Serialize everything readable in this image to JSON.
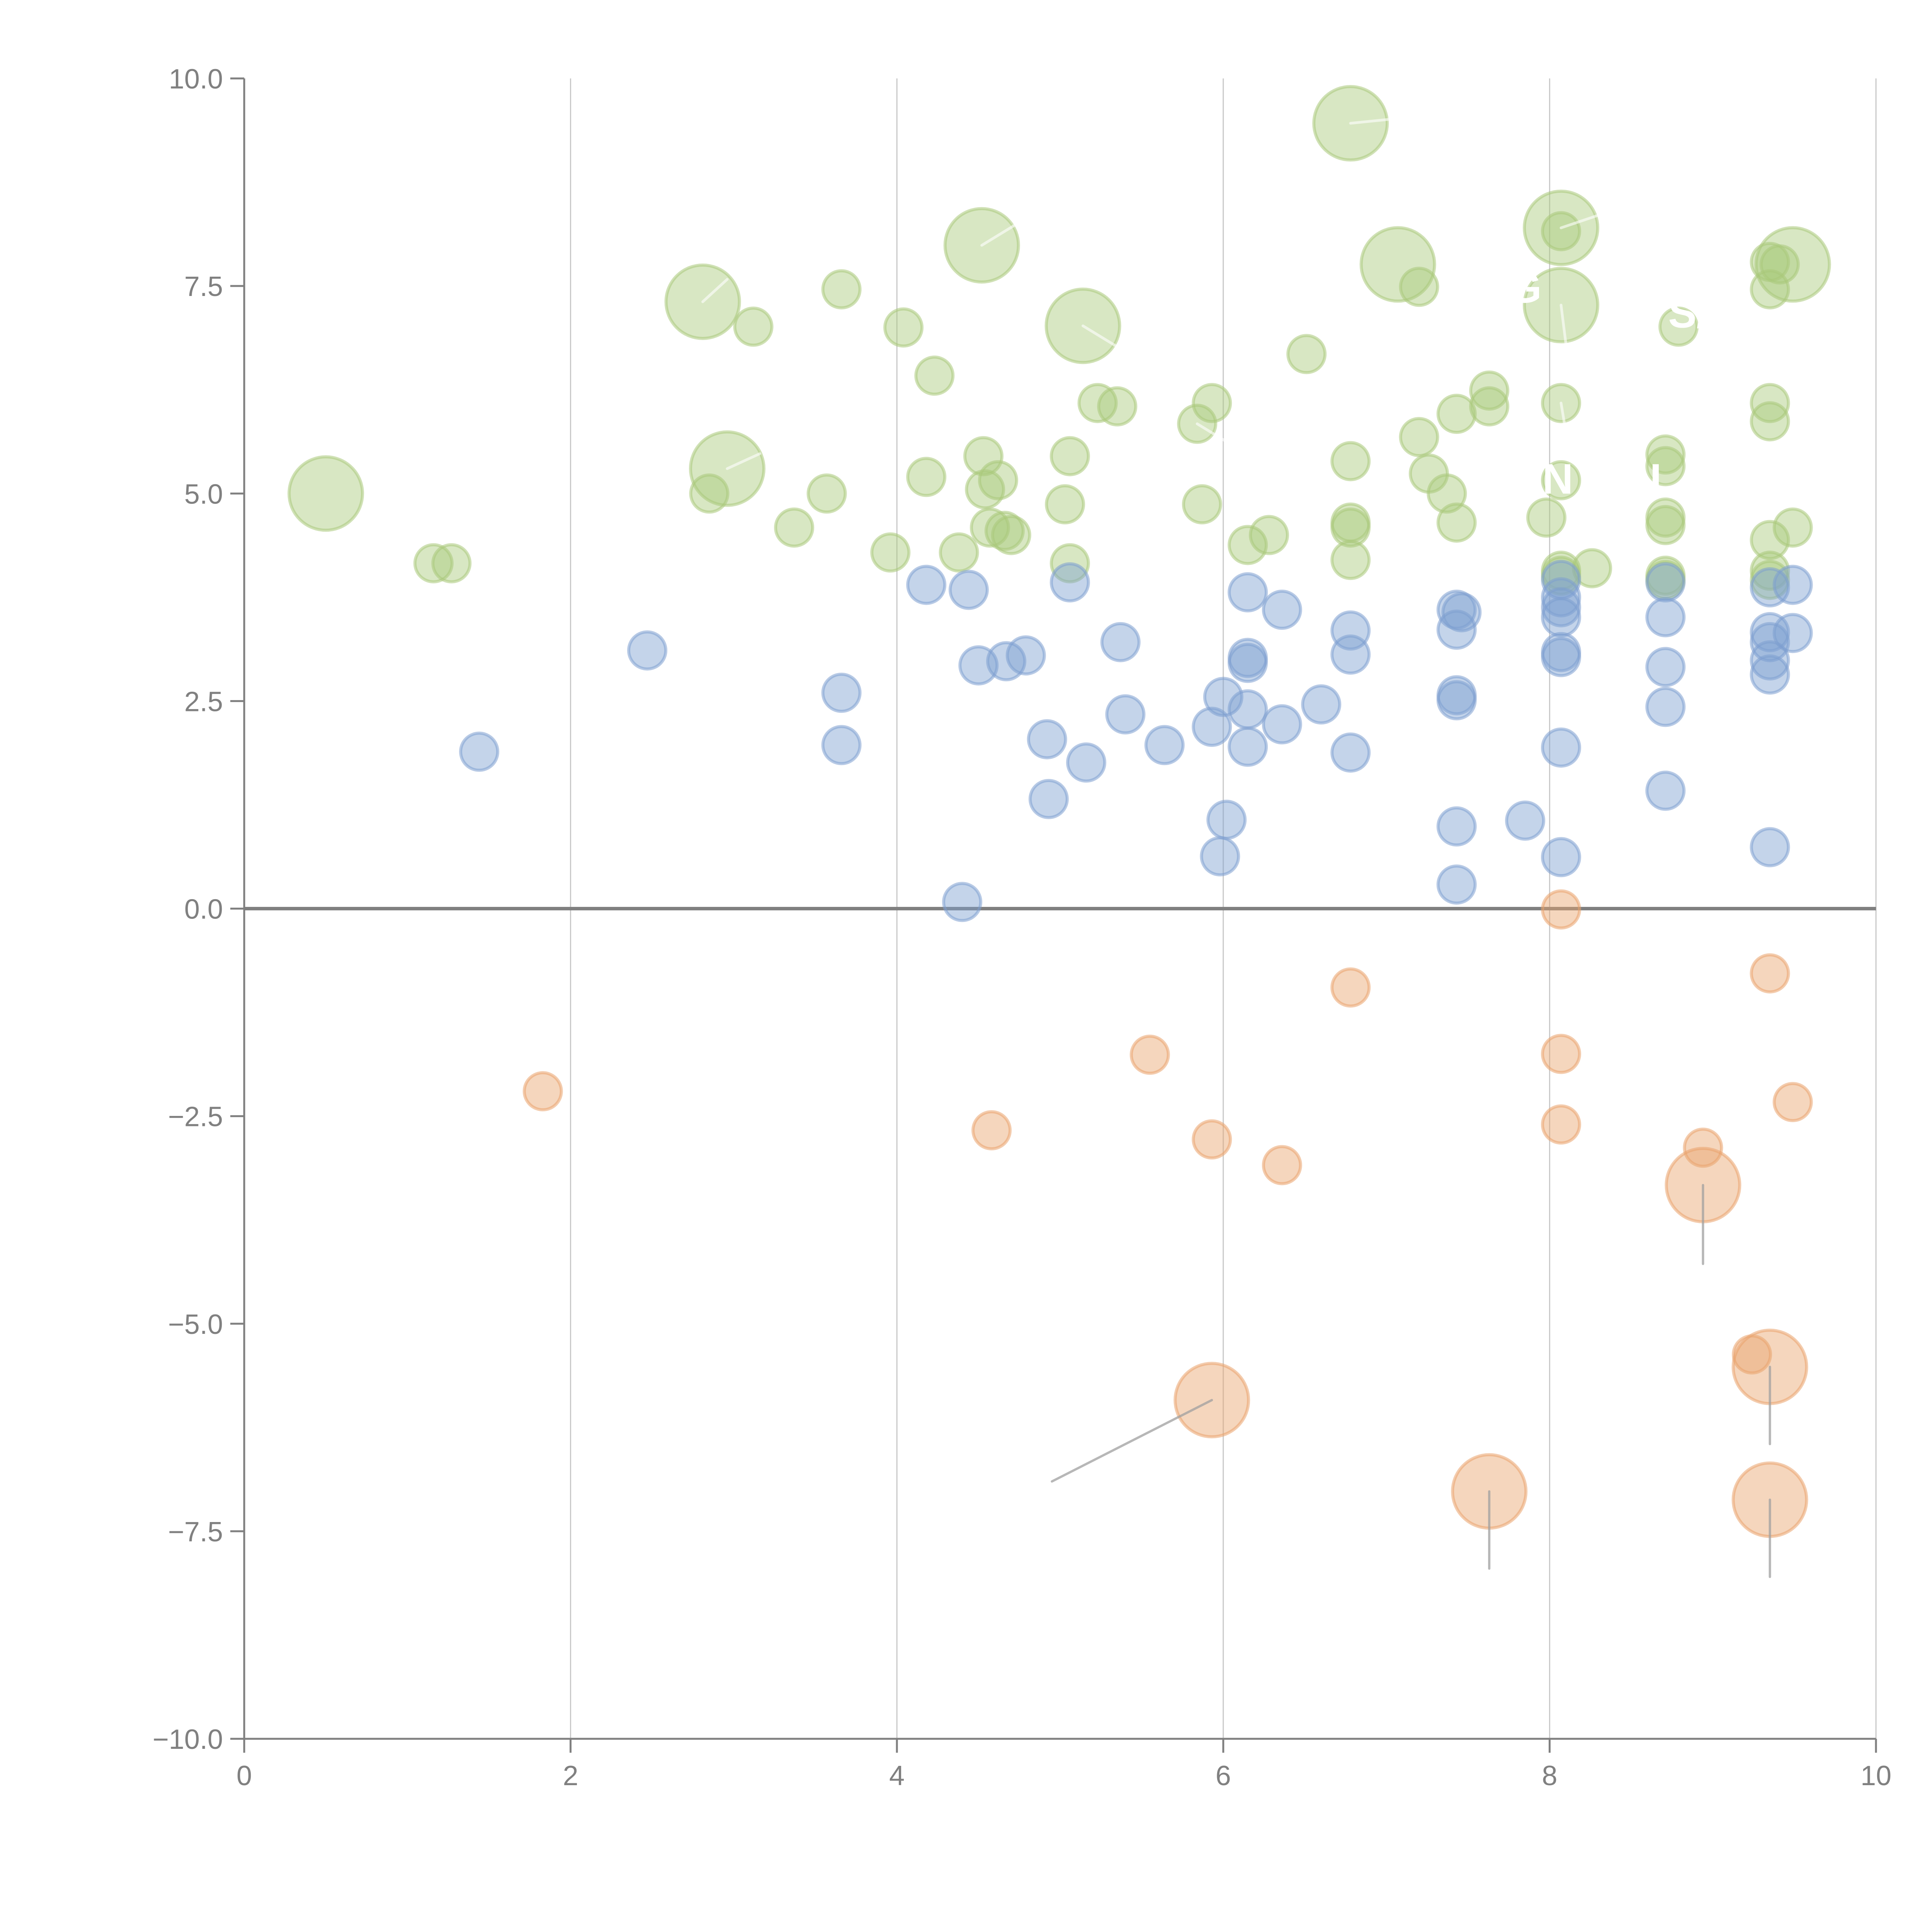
{
  "chart_data": {
    "type": "scatter",
    "title": "",
    "xlabel": "",
    "ylabel": "",
    "xlim": [
      0,
      10
    ],
    "ylim": [
      -10,
      10
    ],
    "x_ticks": [
      "0",
      "2",
      "4",
      "6",
      "8",
      "10"
    ],
    "y_ticks": [
      "10.0",
      "7.5",
      "5.0",
      "2.5",
      "0.0",
      "−2.5",
      "−5.0",
      "−7.5",
      "−10.0"
    ],
    "x_tick_values": [
      0,
      2,
      4,
      6,
      8,
      10
    ],
    "y_tick_values": [
      10,
      7.5,
      5,
      2.5,
      0,
      -2.5,
      -5,
      -7.5,
      -10
    ],
    "grid": "vertical",
    "legend": "none",
    "series": [
      {
        "name": "green",
        "color": "#a9c97a",
        "points": [
          {
            "x": 0.5,
            "y": 5.0,
            "s": 3
          },
          {
            "x": 1.16,
            "y": 4.16,
            "s": 1
          },
          {
            "x": 1.27,
            "y": 4.16,
            "s": 1
          },
          {
            "x": 2.81,
            "y": 7.31,
            "s": 3
          },
          {
            "x": 2.96,
            "y": 5.3,
            "s": 3
          },
          {
            "x": 2.85,
            "y": 5.0,
            "s": 1
          },
          {
            "x": 3.12,
            "y": 7.01,
            "s": 1
          },
          {
            "x": 3.37,
            "y": 4.59,
            "s": 1
          },
          {
            "x": 3.57,
            "y": 5.0,
            "s": 1
          },
          {
            "x": 3.66,
            "y": 7.46,
            "s": 1
          },
          {
            "x": 3.96,
            "y": 4.29,
            "s": 1
          },
          {
            "x": 4.04,
            "y": 7.0,
            "s": 1
          },
          {
            "x": 4.18,
            "y": 5.2,
            "s": 1
          },
          {
            "x": 4.23,
            "y": 6.42,
            "s": 1
          },
          {
            "x": 4.38,
            "y": 4.29,
            "s": 1
          },
          {
            "x": 4.52,
            "y": 7.99,
            "s": 3
          },
          {
            "x": 4.53,
            "y": 5.45,
            "s": 1
          },
          {
            "x": 4.54,
            "y": 5.05,
            "s": 1
          },
          {
            "x": 4.62,
            "y": 5.16,
            "s": 1
          },
          {
            "x": 4.57,
            "y": 4.59,
            "s": 1
          },
          {
            "x": 4.66,
            "y": 4.55,
            "s": 1
          },
          {
            "x": 4.7,
            "y": 4.5,
            "s": 1
          },
          {
            "x": 5.03,
            "y": 4.87,
            "s": 1
          },
          {
            "x": 5.06,
            "y": 5.45,
            "s": 1
          },
          {
            "x": 5.06,
            "y": 4.16,
            "s": 1
          },
          {
            "x": 5.14,
            "y": 7.02,
            "s": 3
          },
          {
            "x": 5.23,
            "y": 6.09,
            "s": 1
          },
          {
            "x": 5.35,
            "y": 6.05,
            "s": 1
          },
          {
            "x": 5.84,
            "y": 5.84,
            "s": 1
          },
          {
            "x": 5.93,
            "y": 6.09,
            "s": 1
          },
          {
            "x": 5.87,
            "y": 4.87,
            "s": 1
          },
          {
            "x": 6.15,
            "y": 4.38,
            "s": 1
          },
          {
            "x": 6.28,
            "y": 4.5,
            "s": 1
          },
          {
            "x": 6.51,
            "y": 6.68,
            "s": 1
          },
          {
            "x": 6.78,
            "y": 9.46,
            "s": 3
          },
          {
            "x": 6.78,
            "y": 5.39,
            "s": 1
          },
          {
            "x": 6.78,
            "y": 4.65,
            "s": 1
          },
          {
            "x": 6.78,
            "y": 4.59,
            "s": 1
          },
          {
            "x": 6.78,
            "y": 4.2,
            "s": 1
          },
          {
            "x": 7.07,
            "y": 7.76,
            "s": 3
          },
          {
            "x": 7.2,
            "y": 7.49,
            "s": 1
          },
          {
            "x": 7.2,
            "y": 5.68,
            "s": 1
          },
          {
            "x": 7.26,
            "y": 5.24,
            "s": 1
          },
          {
            "x": 7.37,
            "y": 5.0,
            "s": 1
          },
          {
            "x": 7.43,
            "y": 5.96,
            "s": 1
          },
          {
            "x": 7.43,
            "y": 4.65,
            "s": 1
          },
          {
            "x": 7.63,
            "y": 6.24,
            "s": 1
          },
          {
            "x": 7.63,
            "y": 6.05,
            "s": 1
          },
          {
            "x": 8.07,
            "y": 8.2,
            "s": 3
          },
          {
            "x": 8.07,
            "y": 8.16,
            "s": 1
          },
          {
            "x": 8.07,
            "y": 7.27,
            "s": 3
          },
          {
            "x": 8.07,
            "y": 6.09,
            "s": 1
          },
          {
            "x": 8.07,
            "y": 5.16,
            "s": 1
          },
          {
            "x": 7.98,
            "y": 4.71,
            "s": 1
          },
          {
            "x": 8.07,
            "y": 4.07,
            "s": 1
          },
          {
            "x": 8.07,
            "y": 4.01,
            "s": 1
          },
          {
            "x": 8.26,
            "y": 4.1,
            "s": 1
          },
          {
            "x": 8.79,
            "y": 7.01,
            "s": 1
          },
          {
            "x": 8.71,
            "y": 5.47,
            "s": 1
          },
          {
            "x": 8.71,
            "y": 5.33,
            "s": 1
          },
          {
            "x": 8.71,
            "y": 4.71,
            "s": 1
          },
          {
            "x": 8.71,
            "y": 4.62,
            "s": 1
          },
          {
            "x": 8.71,
            "y": 4.01,
            "s": 1
          },
          {
            "x": 8.71,
            "y": 3.96,
            "s": 1
          },
          {
            "x": 9.35,
            "y": 7.79,
            "s": 1
          },
          {
            "x": 9.41,
            "y": 7.76,
            "s": 1
          },
          {
            "x": 9.49,
            "y": 7.76,
            "s": 3
          },
          {
            "x": 9.35,
            "y": 7.46,
            "s": 1
          },
          {
            "x": 9.35,
            "y": 6.09,
            "s": 1
          },
          {
            "x": 9.35,
            "y": 5.87,
            "s": 1
          },
          {
            "x": 9.49,
            "y": 4.59,
            "s": 1
          },
          {
            "x": 9.35,
            "y": 4.44,
            "s": 1
          },
          {
            "x": 9.35,
            "y": 4.07,
            "s": 1
          },
          {
            "x": 9.35,
            "y": 3.96,
            "s": 1
          }
        ]
      },
      {
        "name": "blue",
        "color": "#7d9fd0",
        "points": [
          {
            "x": 1.44,
            "y": 1.89,
            "s": 1
          },
          {
            "x": 2.47,
            "y": 3.11,
            "s": 1
          },
          {
            "x": 3.66,
            "y": 2.6,
            "s": 1
          },
          {
            "x": 3.66,
            "y": 1.97,
            "s": 1
          },
          {
            "x": 4.18,
            "y": 3.9,
            "s": 1
          },
          {
            "x": 4.44,
            "y": 3.84,
            "s": 1
          },
          {
            "x": 4.4,
            "y": 0.08,
            "s": 1
          },
          {
            "x": 4.5,
            "y": 2.93,
            "s": 1
          },
          {
            "x": 4.67,
            "y": 2.98,
            "s": 1
          },
          {
            "x": 4.79,
            "y": 3.05,
            "s": 1
          },
          {
            "x": 4.92,
            "y": 2.04,
            "s": 1
          },
          {
            "x": 4.93,
            "y": 1.32,
            "s": 1
          },
          {
            "x": 5.06,
            "y": 3.93,
            "s": 1
          },
          {
            "x": 5.16,
            "y": 1.76,
            "s": 1
          },
          {
            "x": 5.37,
            "y": 3.21,
            "s": 1
          },
          {
            "x": 5.4,
            "y": 2.34,
            "s": 1
          },
          {
            "x": 5.64,
            "y": 1.97,
            "s": 1
          },
          {
            "x": 5.93,
            "y": 2.19,
            "s": 1
          },
          {
            "x": 6.0,
            "y": 2.55,
            "s": 1
          },
          {
            "x": 6.02,
            "y": 1.07,
            "s": 1
          },
          {
            "x": 5.98,
            "y": 0.63,
            "s": 1
          },
          {
            "x": 6.15,
            "y": 3.81,
            "s": 1
          },
          {
            "x": 6.15,
            "y": 3.02,
            "s": 1
          },
          {
            "x": 6.15,
            "y": 2.96,
            "s": 1
          },
          {
            "x": 6.15,
            "y": 2.4,
            "s": 1
          },
          {
            "x": 6.15,
            "y": 1.95,
            "s": 1
          },
          {
            "x": 6.36,
            "y": 3.6,
            "s": 1
          },
          {
            "x": 6.36,
            "y": 2.22,
            "s": 1
          },
          {
            "x": 6.6,
            "y": 2.46,
            "s": 1
          },
          {
            "x": 6.78,
            "y": 3.35,
            "s": 1
          },
          {
            "x": 6.78,
            "y": 3.06,
            "s": 1
          },
          {
            "x": 6.78,
            "y": 1.88,
            "s": 1
          },
          {
            "x": 7.43,
            "y": 3.6,
            "s": 1
          },
          {
            "x": 7.46,
            "y": 3.57,
            "s": 1
          },
          {
            "x": 7.43,
            "y": 3.36,
            "s": 1
          },
          {
            "x": 7.43,
            "y": 2.57,
            "s": 1
          },
          {
            "x": 7.43,
            "y": 2.51,
            "s": 1
          },
          {
            "x": 7.43,
            "y": 0.99,
            "s": 1
          },
          {
            "x": 7.43,
            "y": 0.29,
            "s": 1
          },
          {
            "x": 7.85,
            "y": 1.06,
            "s": 1
          },
          {
            "x": 8.07,
            "y": 3.96,
            "s": 1
          },
          {
            "x": 8.07,
            "y": 3.75,
            "s": 1
          },
          {
            "x": 8.07,
            "y": 3.63,
            "s": 1
          },
          {
            "x": 8.07,
            "y": 3.51,
            "s": 1
          },
          {
            "x": 8.07,
            "y": 3.09,
            "s": 1
          },
          {
            "x": 8.07,
            "y": 3.03,
            "s": 1
          },
          {
            "x": 8.07,
            "y": 1.94,
            "s": 1
          },
          {
            "x": 8.07,
            "y": 0.62,
            "s": 1
          },
          {
            "x": 8.71,
            "y": 3.93,
            "s": 1
          },
          {
            "x": 8.71,
            "y": 3.51,
            "s": 1
          },
          {
            "x": 8.71,
            "y": 2.91,
            "s": 1
          },
          {
            "x": 8.71,
            "y": 2.43,
            "s": 1
          },
          {
            "x": 8.71,
            "y": 1.42,
            "s": 1
          },
          {
            "x": 9.35,
            "y": 3.87,
            "s": 1
          },
          {
            "x": 9.35,
            "y": 3.33,
            "s": 1
          },
          {
            "x": 9.35,
            "y": 3.21,
            "s": 1
          },
          {
            "x": 9.35,
            "y": 2.99,
            "s": 1
          },
          {
            "x": 9.35,
            "y": 2.82,
            "s": 1
          },
          {
            "x": 9.35,
            "y": 0.74,
            "s": 1
          },
          {
            "x": 9.49,
            "y": 3.9,
            "s": 1
          },
          {
            "x": 9.49,
            "y": 3.32,
            "s": 1
          }
        ]
      },
      {
        "name": "orange",
        "color": "#e9a36c",
        "points": [
          {
            "x": 1.83,
            "y": -2.2,
            "s": 1
          },
          {
            "x": 4.58,
            "y": -2.67,
            "s": 1
          },
          {
            "x": 5.55,
            "y": -1.76,
            "s": 1
          },
          {
            "x": 5.93,
            "y": -2.78,
            "s": 1
          },
          {
            "x": 5.93,
            "y": -5.92,
            "s": 3
          },
          {
            "x": 6.36,
            "y": -3.09,
            "s": 1
          },
          {
            "x": 6.78,
            "y": -0.95,
            "s": 1
          },
          {
            "x": 7.63,
            "y": -7.02,
            "s": 3
          },
          {
            "x": 8.07,
            "y": -0.01,
            "s": 1
          },
          {
            "x": 8.07,
            "y": -1.75,
            "s": 1
          },
          {
            "x": 8.07,
            "y": -2.6,
            "s": 1
          },
          {
            "x": 8.94,
            "y": -2.88,
            "s": 1
          },
          {
            "x": 8.94,
            "y": -3.33,
            "s": 3
          },
          {
            "x": 9.24,
            "y": -5.37,
            "s": 1
          },
          {
            "x": 9.35,
            "y": -0.78,
            "s": 1
          },
          {
            "x": 9.35,
            "y": -5.52,
            "s": 3
          },
          {
            "x": 9.35,
            "y": -7.12,
            "s": 3
          },
          {
            "x": 9.49,
            "y": -2.33,
            "s": 1
          }
        ]
      }
    ],
    "leader_lines": [
      {
        "color": "gray",
        "from": [
          5.93,
          -5.92
        ],
        "to": [
          4.95,
          -6.9
        ]
      },
      {
        "color": "gray",
        "from": [
          7.63,
          -7.02
        ],
        "to": [
          7.63,
          -7.95
        ]
      },
      {
        "color": "gray",
        "from": [
          8.94,
          -3.33
        ],
        "to": [
          8.94,
          -4.28
        ]
      },
      {
        "color": "gray",
        "from": [
          9.35,
          -5.52
        ],
        "to": [
          9.35,
          -6.45
        ]
      },
      {
        "color": "gray",
        "from": [
          9.35,
          -7.12
        ],
        "to": [
          9.35,
          -8.05
        ]
      },
      {
        "color": "white",
        "from": [
          2.81,
          7.31
        ],
        "to": [
          2.96,
          7.58
        ]
      },
      {
        "color": "white",
        "from": [
          2.96,
          5.3
        ],
        "to": [
          3.16,
          5.48
        ]
      },
      {
        "color": "white",
        "from": [
          4.52,
          7.99
        ],
        "to": [
          4.72,
          8.23
        ]
      },
      {
        "color": "white",
        "from": [
          5.14,
          7.02
        ],
        "to": [
          5.34,
          6.78
        ]
      },
      {
        "color": "white",
        "from": [
          5.84,
          5.84
        ],
        "to": [
          6.04,
          5.6
        ]
      },
      {
        "color": "white",
        "from": [
          6.78,
          9.46
        ],
        "to": [
          7.08,
          9.52
        ]
      },
      {
        "color": "white",
        "from": [
          8.07,
          8.2
        ],
        "to": [
          8.37,
          8.4
        ]
      },
      {
        "color": "white",
        "from": [
          8.07,
          7.27
        ],
        "to": [
          8.1,
          6.8
        ]
      },
      {
        "color": "white",
        "from": [
          8.07,
          6.09
        ],
        "to": [
          8.12,
          5.5
        ]
      }
    ],
    "labels": [
      {
        "text": "G",
        "x": 7.85,
        "y": 7.3
      },
      {
        "text": "S/",
        "x": 8.85,
        "y": 7.0
      },
      {
        "text": "N",
        "x": 8.05,
        "y": 5.0
      },
      {
        "text": "I",
        "x": 8.65,
        "y": 5.0
      }
    ]
  }
}
